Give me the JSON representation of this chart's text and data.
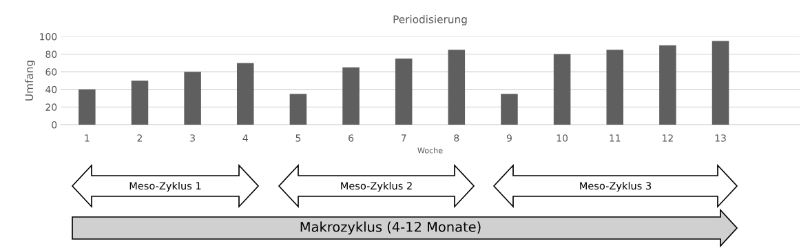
{
  "chart_data": {
    "type": "bar",
    "title": "Periodisierung",
    "xlabel": "Woche",
    "ylabel": "Umfang",
    "categories": [
      "1",
      "2",
      "3",
      "4",
      "5",
      "6",
      "7",
      "8",
      "9",
      "10",
      "11",
      "12",
      "13",
      null
    ],
    "values": [
      40,
      50,
      60,
      70,
      35,
      65,
      75,
      85,
      35,
      80,
      85,
      90,
      95,
      null
    ],
    "color": "#5f5f5f",
    "ylim": [
      0,
      100
    ],
    "yticks": [
      0,
      20,
      40,
      60,
      80,
      100
    ],
    "grid": "y",
    "annotations": [
      "Meso-Zyklus 1",
      "Meso-Zyklus 2",
      "Meso-Zyklus 3",
      "Makrozyklus (4-12 Monate)"
    ]
  }
}
